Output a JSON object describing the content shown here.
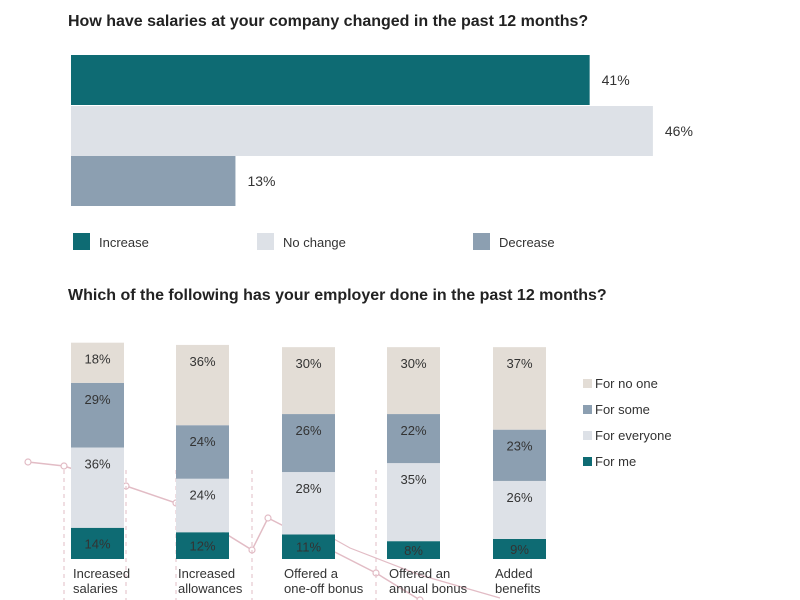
{
  "colors": {
    "increase": "#0e6b73",
    "no_change": "#dde1e7",
    "decrease": "#8c9fb1",
    "for_no_one": "#e3ddd6",
    "for_some": "#8c9fb1",
    "for_everyone": "#dde1e7",
    "for_me": "#0e6b73",
    "background_line": "#e2bcc5"
  },
  "chart_data": [
    {
      "type": "bar",
      "orientation": "horizontal",
      "title": "How have salaries at your company changed in the past 12 months?",
      "categories": [
        "Increase",
        "No change",
        "Decrease"
      ],
      "values": [
        41,
        46,
        13
      ],
      "value_labels": [
        "41%",
        "46%",
        "13%"
      ],
      "legend": [
        "Increase",
        "No change",
        "Decrease"
      ],
      "legend_position": "bottom",
      "xlim": [
        0,
        50
      ],
      "grid": false
    },
    {
      "type": "bar",
      "orientation": "vertical",
      "stacked": true,
      "title": "Which of the following has your employer done in the past 12 months?",
      "categories": [
        [
          "Increased",
          "salaries"
        ],
        [
          "Increased",
          "allowances"
        ],
        [
          "Offered a",
          "one-off bonus"
        ],
        [
          "Offered an",
          "annual bonus"
        ],
        [
          "Added",
          "benefits"
        ]
      ],
      "series": [
        {
          "name": "For me",
          "values": [
            14,
            12,
            11,
            8,
            9
          ],
          "labels": [
            "14%",
            "12%",
            "11%",
            "8%",
            "9%"
          ]
        },
        {
          "name": "For everyone",
          "values": [
            36,
            24,
            28,
            35,
            26
          ],
          "labels": [
            "36%",
            "24%",
            "28%",
            "35%",
            "26%"
          ]
        },
        {
          "name": "For some",
          "values": [
            29,
            24,
            26,
            22,
            23
          ],
          "labels": [
            "29%",
            "24%",
            "26%",
            "22%",
            "23%"
          ]
        },
        {
          "name": "For no one",
          "values": [
            18,
            36,
            30,
            30,
            37
          ],
          "labels": [
            "18%",
            "36%",
            "30%",
            "30%",
            "37%"
          ]
        }
      ],
      "legend": [
        "For no one",
        "For some",
        "For everyone",
        "For me"
      ],
      "legend_position": "right",
      "ylim": [
        0,
        100
      ],
      "grid": false
    }
  ]
}
